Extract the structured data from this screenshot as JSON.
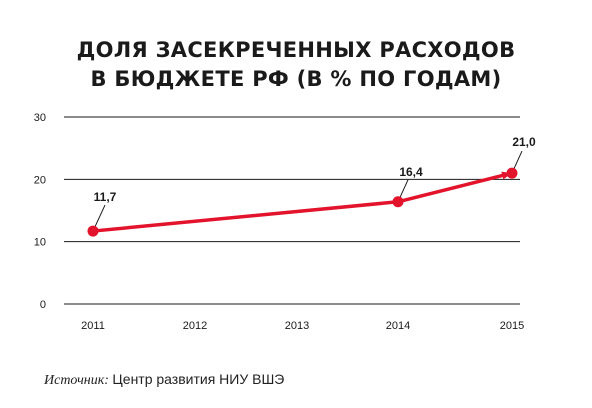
{
  "chart_data": {
    "type": "line",
    "title": [
      "ДОЛЯ ЗАСЕКРЕЧЕННЫХ РАСХОДОВ",
      "В БЮДЖЕТЕ РФ (В % ПО ГОДАМ)"
    ],
    "categories": [
      "2011",
      "2012",
      "2013",
      "2014",
      "2015"
    ],
    "yticks": [
      "0",
      "10",
      "20",
      "30"
    ],
    "ylim": [
      0,
      30
    ],
    "grid": true,
    "series": [
      {
        "x": [
          "2011",
          "2014",
          "2015"
        ],
        "values": [
          11.7,
          16.4,
          21.0
        ],
        "labels": [
          "11,7",
          "16,4",
          "21,0"
        ],
        "color": "#e3132c"
      }
    ]
  },
  "source": {
    "label": "Источник:",
    "text": "Центр развития НИУ ВШЭ"
  }
}
